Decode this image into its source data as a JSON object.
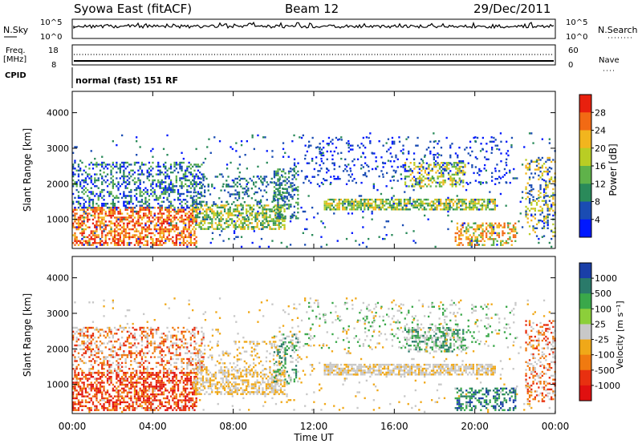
{
  "header": {
    "station": "Syowa East (fitACF)",
    "beam": "Beam 12",
    "date": "29/Dec/2011"
  },
  "panels": {
    "nsky": {
      "label": "N.Sky",
      "ticks_left": [
        "10^5",
        "10^0"
      ],
      "ticks_right": [
        "10^5",
        "10^0"
      ],
      "right_label": "N.Search"
    },
    "freq": {
      "label_line1": "Freq.",
      "label_line2": "[MHz]",
      "ticks_left": [
        "18",
        "8"
      ],
      "ticks_right": [
        "60",
        "0"
      ],
      "right_label": "Nave"
    },
    "cpid": {
      "label": "CPID",
      "mode": "normal (fast) 151 RF"
    }
  },
  "chart_data": [
    {
      "type": "heatmap",
      "name": "power",
      "ylabel": "Slant Range [km]",
      "y_ticks": [
        1000,
        2000,
        3000,
        4000
      ],
      "ylim": [
        180,
        4600
      ],
      "xlim_hours": [
        0,
        24
      ],
      "colorbar_label": "Power [dB]",
      "colorbar_ticks": [
        "4",
        "8",
        "12",
        "16",
        "20",
        "24",
        "28"
      ],
      "colorbar_colors": [
        "#0018ff",
        "#1a4cb3",
        "#2a8a5a",
        "#5fb24a",
        "#b9cd24",
        "#f2b51e",
        "#f26a14",
        "#e8200e"
      ]
    },
    {
      "type": "heatmap",
      "name": "velocity",
      "ylabel": "Slant Range [km]",
      "y_ticks": [
        1000,
        2000,
        3000,
        4000
      ],
      "ylim": [
        180,
        4600
      ],
      "xlim_hours": [
        0,
        24
      ],
      "colorbar_label": "Velocity [m s⁻¹]",
      "colorbar_ticks": [
        "1000",
        "500",
        "100",
        "25",
        "-25",
        "-100",
        "-500",
        "-1000"
      ],
      "colorbar_colors": [
        "#1a3fa8",
        "#2a7a6a",
        "#3aa84a",
        "#8ccf3a",
        "#c8c8c8",
        "#f0a818",
        "#f07a10",
        "#e83010",
        "#e01010"
      ]
    }
  ],
  "x_axis": {
    "ticks": [
      "00:00",
      "04:00",
      "08:00",
      "12:00",
      "16:00",
      "20:00",
      "00:00"
    ],
    "label": "Time UT"
  }
}
